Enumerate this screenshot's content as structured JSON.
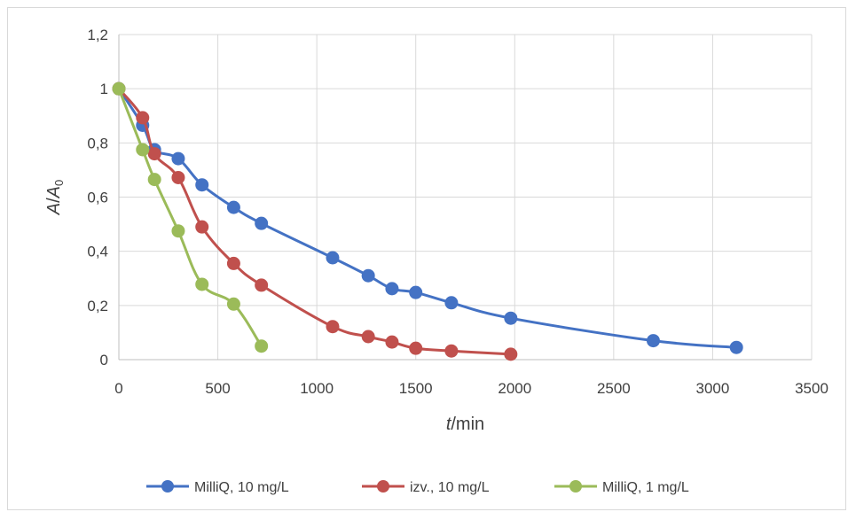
{
  "chart_data": {
    "type": "line",
    "xlabel": {
      "italic": "t",
      "rest": "/min"
    },
    "ylabel": {
      "italic": "A",
      "sep": "/",
      "italic2": "A",
      "sub": "0"
    },
    "xlim": [
      0,
      3500
    ],
    "ylim": [
      0,
      1.2
    ],
    "x_ticks": [
      0,
      500,
      1000,
      1500,
      2000,
      2500,
      3000,
      3500
    ],
    "x_tick_labels": [
      "0",
      "500",
      "1000",
      "1500",
      "2000",
      "2500",
      "3000",
      "3500"
    ],
    "y_ticks": [
      0,
      0.2,
      0.4,
      0.6,
      0.8,
      1,
      1.2
    ],
    "y_tick_labels": [
      "0",
      "0,2",
      "0,4",
      "0,6",
      "0,8",
      "1",
      "1,2"
    ],
    "grid": true,
    "legend_position": "bottom",
    "series": [
      {
        "name": "MilliQ, 10 mg/L",
        "color": "#4472c4",
        "points": [
          [
            0,
            1.0
          ],
          [
            120,
            0.865
          ],
          [
            180,
            0.775
          ],
          [
            300,
            0.742
          ],
          [
            420,
            0.645
          ],
          [
            580,
            0.562
          ],
          [
            720,
            0.503
          ],
          [
            1080,
            0.376
          ],
          [
            1260,
            0.31
          ],
          [
            1380,
            0.262
          ],
          [
            1500,
            0.248
          ],
          [
            1680,
            0.21
          ],
          [
            1980,
            0.153
          ],
          [
            2700,
            0.07
          ],
          [
            3120,
            0.045
          ]
        ]
      },
      {
        "name": "izv., 10 mg/L",
        "color": "#c0504d",
        "points": [
          [
            0,
            1.0
          ],
          [
            120,
            0.893
          ],
          [
            180,
            0.76
          ],
          [
            300,
            0.672
          ],
          [
            420,
            0.49
          ],
          [
            580,
            0.355
          ],
          [
            720,
            0.275
          ],
          [
            1080,
            0.122
          ],
          [
            1260,
            0.085
          ],
          [
            1380,
            0.065
          ],
          [
            1500,
            0.042
          ],
          [
            1680,
            0.032
          ],
          [
            1980,
            0.02
          ]
        ]
      },
      {
        "name": "MilliQ, 1 mg/L",
        "color": "#9bbb59",
        "points": [
          [
            0,
            1.0
          ],
          [
            120,
            0.775
          ],
          [
            180,
            0.665
          ],
          [
            300,
            0.475
          ],
          [
            420,
            0.278
          ],
          [
            580,
            0.205
          ],
          [
            720,
            0.05
          ]
        ]
      }
    ]
  }
}
